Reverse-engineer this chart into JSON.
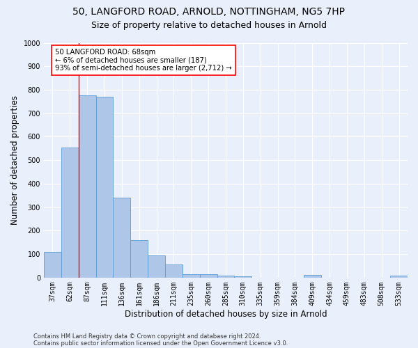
{
  "title_line1": "50, LANGFORD ROAD, ARNOLD, NOTTINGHAM, NG5 7HP",
  "title_line2": "Size of property relative to detached houses in Arnold",
  "xlabel": "Distribution of detached houses by size in Arnold",
  "ylabel": "Number of detached properties",
  "categories": [
    "37sqm",
    "62sqm",
    "87sqm",
    "111sqm",
    "136sqm",
    "161sqm",
    "186sqm",
    "211sqm",
    "235sqm",
    "260sqm",
    "285sqm",
    "310sqm",
    "335sqm",
    "359sqm",
    "384sqm",
    "409sqm",
    "434sqm",
    "459sqm",
    "483sqm",
    "508sqm",
    "533sqm"
  ],
  "values": [
    110,
    555,
    775,
    770,
    340,
    160,
    95,
    55,
    15,
    15,
    8,
    5,
    0,
    0,
    0,
    10,
    0,
    0,
    0,
    0,
    8
  ],
  "bar_color": "#aec6e8",
  "bar_edge_color": "#5b9bd5",
  "annotation_text": "50 LANGFORD ROAD: 68sqm\n← 6% of detached houses are smaller (187)\n93% of semi-detached houses are larger (2,712) →",
  "annotation_box_color": "white",
  "annotation_box_edge_color": "red",
  "vline_color": "red",
  "vline_x": 1.5,
  "footer_line1": "Contains HM Land Registry data © Crown copyright and database right 2024.",
  "footer_line2": "Contains public sector information licensed under the Open Government Licence v3.0.",
  "background_color": "#eaf0fb",
  "plot_bg_color": "#eaf0fb",
  "ylim": [
    0,
    1000
  ],
  "yticks": [
    0,
    100,
    200,
    300,
    400,
    500,
    600,
    700,
    800,
    900,
    1000
  ],
  "grid_color": "#ffffff",
  "title_fontsize": 10,
  "subtitle_fontsize": 9,
  "axis_label_fontsize": 8.5,
  "tick_fontsize": 7
}
